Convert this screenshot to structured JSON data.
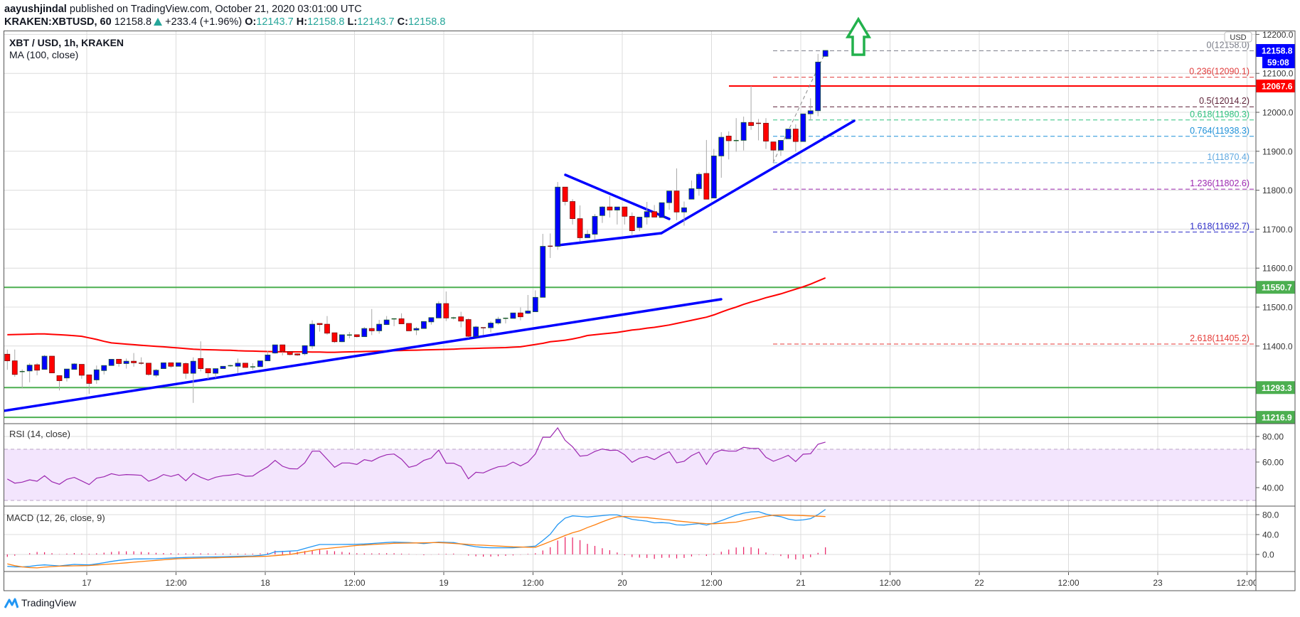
{
  "header": {
    "author": "aayushjindal",
    "published": "published on TradingView.com, October 21, 2020 03:01:00 UTC",
    "symbol": "KRAKEN:XBTUSD, 60",
    "last": "12158.8",
    "change": "+233.4 (+1.96%)",
    "o_label": "O:",
    "o": "12143.7",
    "h_label": "H:",
    "h": "12158.8",
    "l_label": "L:",
    "l": "12143.7",
    "c_label": "C:",
    "c": "12158.8"
  },
  "legend": {
    "title": "XBT / USD, 1h, KRAKEN",
    "ma": "MA (100, close)",
    "rsi": "RSI (14, close)",
    "macd": "MACD (12, 26, close, 9)"
  },
  "price_axis": {
    "currency": "USD",
    "countdown": "59:08"
  },
  "branding": "TradingView",
  "icons": {
    "change_direction": "up-triangle-icon",
    "annotation": "up-arrow-outline-icon",
    "brand": "tradingview-logo-icon"
  },
  "colors": {
    "up_candle": "#0000ff",
    "down_candle": "#ff0000",
    "ma": "#ff0000",
    "trendline": "#0000ff",
    "support": "#4caf50",
    "resistance": "#ff0000",
    "rsi": "#9c27b0",
    "rsi_band": "#f3e5fd",
    "macd": "#2196f3",
    "signal": "#ff7f0e",
    "histogram": "#e91e63",
    "arrow": "#22b14c",
    "teal": "#26a69a"
  },
  "chart_data": {
    "type": "candlestick",
    "x_ticks": [
      "17",
      "12:00",
      "18",
      "12:00",
      "19",
      "12:00",
      "20",
      "12:00",
      "21",
      "12:00",
      "22",
      "12:00",
      "23",
      "12:00"
    ],
    "y_ticks": [
      "12200.0",
      "12100.0",
      "12000.0",
      "11900.0",
      "11800.0",
      "11700.0",
      "11600.0",
      "11500.0",
      "11400.0"
    ],
    "candles": [
      [
        11379,
        11391,
        11339,
        11362
      ],
      [
        11362,
        11391,
        11321,
        11327
      ],
      [
        11334,
        11340,
        11291,
        11335
      ],
      [
        11336,
        11356,
        11307,
        11351
      ],
      [
        11352,
        11356,
        11325,
        11338
      ],
      [
        11340,
        11377,
        11340,
        11374
      ],
      [
        11374,
        11374,
        11331,
        11331
      ],
      [
        11324,
        11324,
        11286,
        11311
      ],
      [
        11318,
        11341,
        11309,
        11341
      ],
      [
        11340,
        11356,
        11340,
        11354
      ],
      [
        11353,
        11353,
        11316,
        11325
      ],
      [
        11326,
        11326,
        11277,
        11304
      ],
      [
        11313,
        11350,
        11303,
        11339
      ],
      [
        11337,
        11350,
        11327,
        11350
      ],
      [
        11350,
        11366,
        11350,
        11366
      ],
      [
        11366,
        11366,
        11347,
        11355
      ],
      [
        11355,
        11368,
        11342,
        11361
      ],
      [
        11361,
        11382,
        11347,
        11357
      ],
      [
        11357,
        11371,
        11352,
        11355
      ],
      [
        11356,
        11356,
        11324,
        11327
      ],
      [
        11325,
        11341,
        11320,
        11338
      ],
      [
        11342,
        11357,
        11342,
        11357
      ],
      [
        11357,
        11357,
        11344,
        11348
      ],
      [
        11348,
        11357,
        11348,
        11357
      ],
      [
        11355,
        11358,
        11316,
        11330
      ],
      [
        11330,
        11371,
        11254,
        11361
      ],
      [
        11368,
        11412,
        11335,
        11342
      ],
      [
        11342,
        11342,
        11315,
        11331
      ],
      [
        11330,
        11342,
        11318,
        11342
      ],
      [
        11342,
        11348,
        11342,
        11348
      ],
      [
        11349,
        11352,
        11347,
        11350
      ],
      [
        11348,
        11368,
        11330,
        11356
      ],
      [
        11356,
        11356,
        11345,
        11345
      ],
      [
        11346,
        11356,
        11339,
        11347
      ],
      [
        11347,
        11362,
        11347,
        11362
      ],
      [
        11362,
        11388,
        11362,
        11377
      ],
      [
        11382,
        11403,
        11380,
        11403
      ],
      [
        11403,
        11403,
        11376,
        11386
      ],
      [
        11386,
        11386,
        11376,
        11378
      ],
      [
        11380,
        11381,
        11375,
        11377
      ],
      [
        11380,
        11402,
        11376,
        11401
      ],
      [
        11400,
        11466,
        11393,
        11456
      ],
      [
        11458,
        11458,
        11437,
        11455
      ],
      [
        11456,
        11477,
        11429,
        11433
      ],
      [
        11434,
        11434,
        11408,
        11411
      ],
      [
        11411,
        11429,
        11410,
        11429
      ],
      [
        11428,
        11436,
        11420,
        11428.5
      ],
      [
        11429,
        11429,
        11422,
        11424
      ],
      [
        11424,
        11449,
        11424,
        11445
      ],
      [
        11445,
        11495,
        11428,
        11439
      ],
      [
        11439,
        11467,
        11432,
        11456
      ],
      [
        11455,
        11477,
        11455,
        11467
      ],
      [
        11469.5,
        11471,
        11451,
        11470
      ],
      [
        11470,
        11484,
        11457,
        11457
      ],
      [
        11458,
        11458,
        11439,
        11439
      ],
      [
        11441,
        11449,
        11428,
        11445
      ],
      [
        11445,
        11463,
        11445,
        11463
      ],
      [
        11462,
        11473,
        11455,
        11473
      ],
      [
        11472,
        11515,
        11472,
        11509
      ],
      [
        11509,
        11540,
        11464,
        11472
      ],
      [
        11472,
        11475,
        11468,
        11472.5
      ],
      [
        11475,
        11488,
        11448,
        11464
      ],
      [
        11468,
        11471,
        11420,
        11425
      ],
      [
        11424,
        11452,
        11424,
        11449
      ],
      [
        11448,
        11448,
        11429,
        11446
      ],
      [
        11447,
        11464,
        11435,
        11459
      ],
      [
        11459,
        11475,
        11455,
        11469
      ],
      [
        11471,
        11473,
        11458,
        11471.5
      ],
      [
        11471,
        11485,
        11471,
        11485
      ],
      [
        11485,
        11499,
        11466,
        11475
      ],
      [
        11484,
        11531,
        11482,
        11490
      ],
      [
        11488,
        11543,
        11488,
        11525
      ],
      [
        11525,
        11688,
        11525,
        11656
      ],
      [
        11656.5,
        11689,
        11626,
        11656
      ],
      [
        11656,
        11821,
        11647,
        11808
      ],
      [
        11808,
        11808,
        11761,
        11771
      ],
      [
        11771,
        11777,
        11712,
        11727
      ],
      [
        11727,
        11761,
        11669,
        11678
      ],
      [
        11678,
        11698,
        11678,
        11687
      ],
      [
        11687,
        11739,
        11674,
        11733
      ],
      [
        11735,
        11759,
        11716,
        11757
      ],
      [
        11757,
        11785,
        11730,
        11749
      ],
      [
        11749,
        11757,
        11712,
        11757
      ],
      [
        11757,
        11757,
        11712,
        11733
      ],
      [
        11733,
        11743,
        11683,
        11696
      ],
      [
        11704,
        11731,
        11695,
        11731
      ],
      [
        11731,
        11770,
        11712,
        11745
      ],
      [
        11745,
        11762,
        11731,
        11731
      ],
      [
        11730,
        11768,
        11730,
        11768
      ],
      [
        11768,
        11798,
        11750,
        11798
      ],
      [
        11798,
        11856,
        11723,
        11744
      ],
      [
        11744,
        11771,
        11709,
        11755
      ],
      [
        11777,
        11825,
        11777,
        11804
      ],
      [
        11804,
        11846,
        11786,
        11841
      ],
      [
        11843,
        11929,
        11777,
        11777
      ],
      [
        11780,
        11906,
        11780,
        11888
      ],
      [
        11888,
        11949,
        11832,
        11936
      ],
      [
        11939,
        11951,
        11879,
        11927
      ],
      [
        11927,
        11985,
        11899,
        11928
      ],
      [
        11928,
        11989,
        11902,
        11974
      ],
      [
        11974,
        12067.6,
        11955,
        11966
      ],
      [
        11972,
        11983,
        11928,
        11971.5
      ],
      [
        11972,
        11985,
        11906,
        11926
      ],
      [
        11924,
        11924,
        11870.4,
        11903
      ],
      [
        11903,
        11928,
        11888,
        11928
      ],
      [
        11932,
        11957,
        11932,
        11957
      ],
      [
        11957,
        11969,
        11899,
        11925
      ],
      [
        11925,
        11996,
        11925,
        11996
      ],
      [
        11996,
        12036,
        11979,
        12004
      ],
      [
        12004,
        12150,
        11990,
        12129
      ],
      [
        12143.7,
        12158.8,
        12143.7,
        12158.8
      ]
    ],
    "ma100": [
      11429,
      11429.5,
      11430,
      11430.5,
      11431,
      11431,
      11430,
      11429,
      11428,
      11426.5,
      11425,
      11421,
      11417,
      11412,
      11408,
      11406.5,
      11405,
      11403.5,
      11402,
      11400.5,
      11399,
      11398,
      11396.5,
      11395,
      11393.5,
      11392,
      11391,
      11390.5,
      11390,
      11389.5,
      11389,
      11388,
      11387.5,
      11387,
      11386.5,
      11386,
      11385.5,
      11385,
      11385,
      11385,
      11385,
      11384.5,
      11384.5,
      11384,
      11384,
      11384.5,
      11385,
      11385.5,
      11386,
      11386.5,
      11387,
      11387.5,
      11388,
      11388.5,
      11389,
      11389.5,
      11390,
      11390.5,
      11391,
      11391.5,
      11392,
      11393,
      11393.5,
      11394,
      11394.5,
      11395,
      11395.5,
      11396,
      11397,
      11398,
      11401,
      11404,
      11407,
      11411,
      11413,
      11415,
      11418,
      11422,
      11427,
      11429,
      11431,
      11433,
      11435,
      11438,
      11441,
      11443,
      11446,
      11448,
      11451,
      11454,
      11458,
      11462,
      11466,
      11470,
      11474,
      11480,
      11487,
      11494,
      11500,
      11507,
      11513,
      11518,
      11524,
      11529,
      11534,
      11540,
      11546,
      11552,
      11559,
      11567,
      11575
    ],
    "horizontal_levels": [
      {
        "price": 12067.6,
        "label": "12067.6",
        "color": "#ff0000"
      },
      {
        "price": 11550.7,
        "label": "11550.7",
        "color": "#4caf50"
      },
      {
        "price": 11293.3,
        "label": "11293.3",
        "color": "#4caf50"
      },
      {
        "price": 11216.9,
        "label": "11216.9",
        "color": "#4caf50"
      }
    ],
    "last_price": {
      "price": 12158.8,
      "label": "12158.8",
      "color": "#0000ff"
    },
    "fibonacci": [
      {
        "level": "0",
        "price": 12158.0,
        "label": "0(12158.0)",
        "color": "#787b86"
      },
      {
        "level": "0.236",
        "price": 12090.1,
        "label": "0.236(12090.1)",
        "color": "#e03c3c"
      },
      {
        "level": "0.5",
        "price": 12014.2,
        "label": "0.5(12014.2)",
        "color": "#5b1f35"
      },
      {
        "level": "0.618",
        "price": 11980.3,
        "label": "0.618(11980.3)",
        "color": "#2ec27e"
      },
      {
        "level": "0.764",
        "price": 11938.3,
        "label": "0.764(11938.3)",
        "color": "#1e90d8"
      },
      {
        "level": "1",
        "price": 11870.4,
        "label": "1(11870.4)",
        "color": "#5fa8e0"
      },
      {
        "level": "1.236",
        "price": 11802.6,
        "label": "1.236(11802.6)",
        "color": "#9c27b0"
      },
      {
        "level": "1.618",
        "price": 11692.7,
        "label": "1.618(11692.7)",
        "color": "#2b2bc8"
      },
      {
        "level": "2.618",
        "price": 11405.2,
        "label": "2.618(11405.2)",
        "color": "#e53935"
      }
    ],
    "rsi": {
      "ticks": [
        "80.00",
        "60.00",
        "40.00"
      ],
      "band": [
        30,
        70
      ],
      "values": [
        46.7,
        43.5,
        44.3,
        46.1,
        45.0,
        49.3,
        44.6,
        42.6,
        46.5,
        48.0,
        45.2,
        42.4,
        47.4,
        48.5,
        50.9,
        49.6,
        50.2,
        50.0,
        49.6,
        45.0,
        47.0,
        50.2,
        48.7,
        50.4,
        45.4,
        51.1,
        48.1,
        45.9,
        48.1,
        49.3,
        49.8,
        50.7,
        48.9,
        49.1,
        53.0,
        56.3,
        61.3,
        56.7,
        54.8,
        54.6,
        59.4,
        68.5,
        68.5,
        62.2,
        55.9,
        59.3,
        59.3,
        58.1,
        61.9,
        60.7,
        63.7,
        65.7,
        66.3,
        62.2,
        55.9,
        57.4,
        61.3,
        63.1,
        69.4,
        59.1,
        59.1,
        56.5,
        46.9,
        52.0,
        51.5,
        54.1,
        56.3,
        56.9,
        60.0,
        57.0,
        60.0,
        66.3,
        79.4,
        79.4,
        86.7,
        77.0,
        71.9,
        64.6,
        65.2,
        68.3,
        70.2,
        69.1,
        69.3,
        65.7,
        59.8,
        63.0,
        64.3,
        61.9,
        65.4,
        68.0,
        59.4,
        60.6,
        65.0,
        67.8,
        58.1,
        66.9,
        69.4,
        68.5,
        68.5,
        71.5,
        70.6,
        70.7,
        63.7,
        60.6,
        62.8,
        65.2,
        60.4,
        66.1,
        66.5,
        73.9,
        75.6
      ]
    },
    "macd": {
      "ticks": [
        "80.0",
        "40.0",
        "0.0"
      ],
      "macd": [
        -23.8,
        -25,
        -25,
        -24,
        -22,
        -21,
        -22,
        -23,
        -21.5,
        -20,
        -20.5,
        -21,
        -19,
        -16.6,
        -14,
        -11.8,
        -10.5,
        -9.2,
        -9,
        -8.7,
        -8.5,
        -7.9,
        -7.2,
        -6.6,
        -6,
        -5.5,
        -5.1,
        -5,
        -4.8,
        -4.5,
        -4.2,
        -3.8,
        -3.4,
        -3,
        -2,
        0,
        5.3,
        6,
        6.7,
        7.7,
        12,
        16,
        20,
        20,
        20,
        20.2,
        20.3,
        20.5,
        21,
        21.9,
        23,
        24,
        24.8,
        24.3,
        23.9,
        23,
        21.9,
        23.4,
        24.8,
        24.3,
        23.9,
        21,
        18,
        15.5,
        14,
        13.4,
        13.4,
        13.4,
        13.4,
        14.5,
        15.6,
        16.7,
        28,
        40.5,
        60,
        73,
        77.6,
        76.5,
        75.3,
        76.7,
        78,
        79.5,
        79.5,
        75,
        70.5,
        68.5,
        67,
        63.6,
        64,
        63,
        59.5,
        59,
        60.5,
        62,
        59,
        63,
        68,
        73.5,
        79,
        83,
        85.5,
        86,
        81,
        78,
        76,
        71,
        68.5,
        69.5,
        72,
        80,
        90.5
      ],
      "signal": [
        -19,
        -22.5,
        -25,
        -26.5,
        -27,
        -25.5,
        -24.5,
        -23.6,
        -23.2,
        -22.8,
        -22.5,
        -22.3,
        -21.2,
        -20.2,
        -19.1,
        -18,
        -16.8,
        -15.5,
        -14.3,
        -13,
        -11.8,
        -10.7,
        -9.6,
        -8.5,
        -8.1,
        -7.7,
        -7.3,
        -7,
        -6.7,
        -6.3,
        -5.9,
        -5.4,
        -4.9,
        -4.5,
        -4,
        -3.5,
        -2.4,
        -1.2,
        0,
        2.6,
        5.2,
        7.9,
        10.5,
        12,
        13.5,
        15,
        16.6,
        18.1,
        19,
        19.8,
        20.7,
        21.5,
        22.4,
        22.7,
        22.9,
        23.2,
        23.4,
        23.7,
        23.9,
        23.2,
        22.2,
        21.2,
        20.1,
        19.2,
        18.5,
        17.7,
        16.9,
        16.1,
        15.3,
        15,
        14.6,
        14.3,
        20,
        26,
        32,
        38,
        43.5,
        47.7,
        54,
        59.5,
        65.5,
        71,
        75.5,
        76.5,
        75.7,
        74.8,
        74,
        72.5,
        70.8,
        69.5,
        67.5,
        66,
        64.5,
        63,
        62,
        61.7,
        62.6,
        63.8,
        65,
        68,
        71,
        74,
        77,
        78.7,
        79.2,
        79,
        78.6,
        78.1,
        77.5,
        76.8,
        76.2
      ]
    }
  }
}
